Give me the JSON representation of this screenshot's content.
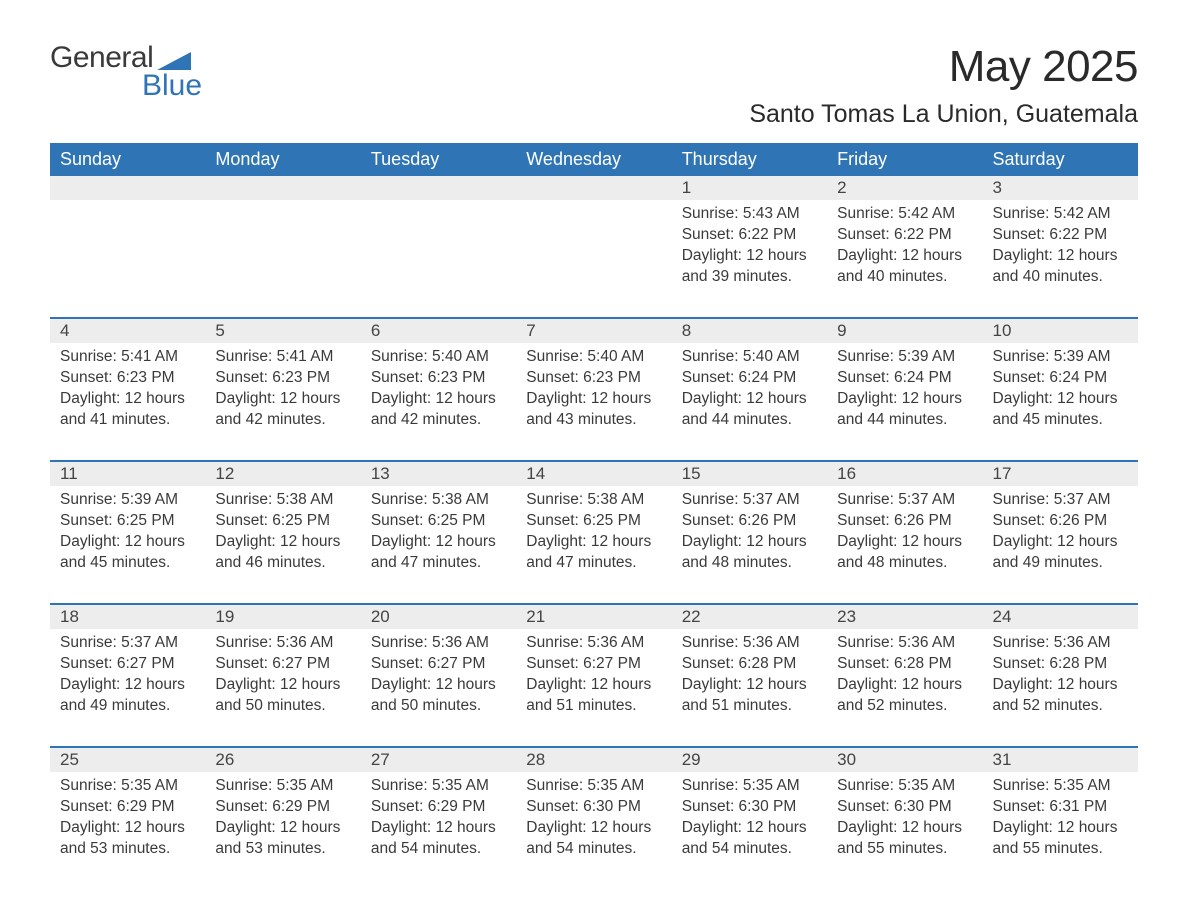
{
  "logo": {
    "line1": "General",
    "line2": "Blue"
  },
  "header": {
    "month_title": "May 2025",
    "location": "Santo Tomas La Union, Guatemala"
  },
  "weekdays": [
    "Sunday",
    "Monday",
    "Tuesday",
    "Wednesday",
    "Thursday",
    "Friday",
    "Saturday"
  ],
  "style": {
    "accent_color": "#2f74b5",
    "daynum_bg": "#ededed",
    "text_color": "#3a3a3a",
    "background": "#ffffff"
  },
  "labels": {
    "sunrise": "Sunrise: ",
    "sunset": "Sunset: ",
    "daylight_prefix": "Daylight: ",
    "daylight_suffix": " minutes."
  },
  "weeks": [
    [
      null,
      null,
      null,
      null,
      {
        "d": "1",
        "sr": "5:43 AM",
        "ss": "6:22 PM",
        "dh": 12,
        "dm": 39
      },
      {
        "d": "2",
        "sr": "5:42 AM",
        "ss": "6:22 PM",
        "dh": 12,
        "dm": 40
      },
      {
        "d": "3",
        "sr": "5:42 AM",
        "ss": "6:22 PM",
        "dh": 12,
        "dm": 40
      }
    ],
    [
      {
        "d": "4",
        "sr": "5:41 AM",
        "ss": "6:23 PM",
        "dh": 12,
        "dm": 41
      },
      {
        "d": "5",
        "sr": "5:41 AM",
        "ss": "6:23 PM",
        "dh": 12,
        "dm": 42
      },
      {
        "d": "6",
        "sr": "5:40 AM",
        "ss": "6:23 PM",
        "dh": 12,
        "dm": 42
      },
      {
        "d": "7",
        "sr": "5:40 AM",
        "ss": "6:23 PM",
        "dh": 12,
        "dm": 43
      },
      {
        "d": "8",
        "sr": "5:40 AM",
        "ss": "6:24 PM",
        "dh": 12,
        "dm": 44
      },
      {
        "d": "9",
        "sr": "5:39 AM",
        "ss": "6:24 PM",
        "dh": 12,
        "dm": 44
      },
      {
        "d": "10",
        "sr": "5:39 AM",
        "ss": "6:24 PM",
        "dh": 12,
        "dm": 45
      }
    ],
    [
      {
        "d": "11",
        "sr": "5:39 AM",
        "ss": "6:25 PM",
        "dh": 12,
        "dm": 45
      },
      {
        "d": "12",
        "sr": "5:38 AM",
        "ss": "6:25 PM",
        "dh": 12,
        "dm": 46
      },
      {
        "d": "13",
        "sr": "5:38 AM",
        "ss": "6:25 PM",
        "dh": 12,
        "dm": 47
      },
      {
        "d": "14",
        "sr": "5:38 AM",
        "ss": "6:25 PM",
        "dh": 12,
        "dm": 47
      },
      {
        "d": "15",
        "sr": "5:37 AM",
        "ss": "6:26 PM",
        "dh": 12,
        "dm": 48
      },
      {
        "d": "16",
        "sr": "5:37 AM",
        "ss": "6:26 PM",
        "dh": 12,
        "dm": 48
      },
      {
        "d": "17",
        "sr": "5:37 AM",
        "ss": "6:26 PM",
        "dh": 12,
        "dm": 49
      }
    ],
    [
      {
        "d": "18",
        "sr": "5:37 AM",
        "ss": "6:27 PM",
        "dh": 12,
        "dm": 49
      },
      {
        "d": "19",
        "sr": "5:36 AM",
        "ss": "6:27 PM",
        "dh": 12,
        "dm": 50
      },
      {
        "d": "20",
        "sr": "5:36 AM",
        "ss": "6:27 PM",
        "dh": 12,
        "dm": 50
      },
      {
        "d": "21",
        "sr": "5:36 AM",
        "ss": "6:27 PM",
        "dh": 12,
        "dm": 51
      },
      {
        "d": "22",
        "sr": "5:36 AM",
        "ss": "6:28 PM",
        "dh": 12,
        "dm": 51
      },
      {
        "d": "23",
        "sr": "5:36 AM",
        "ss": "6:28 PM",
        "dh": 12,
        "dm": 52
      },
      {
        "d": "24",
        "sr": "5:36 AM",
        "ss": "6:28 PM",
        "dh": 12,
        "dm": 52
      }
    ],
    [
      {
        "d": "25",
        "sr": "5:35 AM",
        "ss": "6:29 PM",
        "dh": 12,
        "dm": 53
      },
      {
        "d": "26",
        "sr": "5:35 AM",
        "ss": "6:29 PM",
        "dh": 12,
        "dm": 53
      },
      {
        "d": "27",
        "sr": "5:35 AM",
        "ss": "6:29 PM",
        "dh": 12,
        "dm": 54
      },
      {
        "d": "28",
        "sr": "5:35 AM",
        "ss": "6:30 PM",
        "dh": 12,
        "dm": 54
      },
      {
        "d": "29",
        "sr": "5:35 AM",
        "ss": "6:30 PM",
        "dh": 12,
        "dm": 54
      },
      {
        "d": "30",
        "sr": "5:35 AM",
        "ss": "6:30 PM",
        "dh": 12,
        "dm": 55
      },
      {
        "d": "31",
        "sr": "5:35 AM",
        "ss": "6:31 PM",
        "dh": 12,
        "dm": 55
      }
    ]
  ]
}
